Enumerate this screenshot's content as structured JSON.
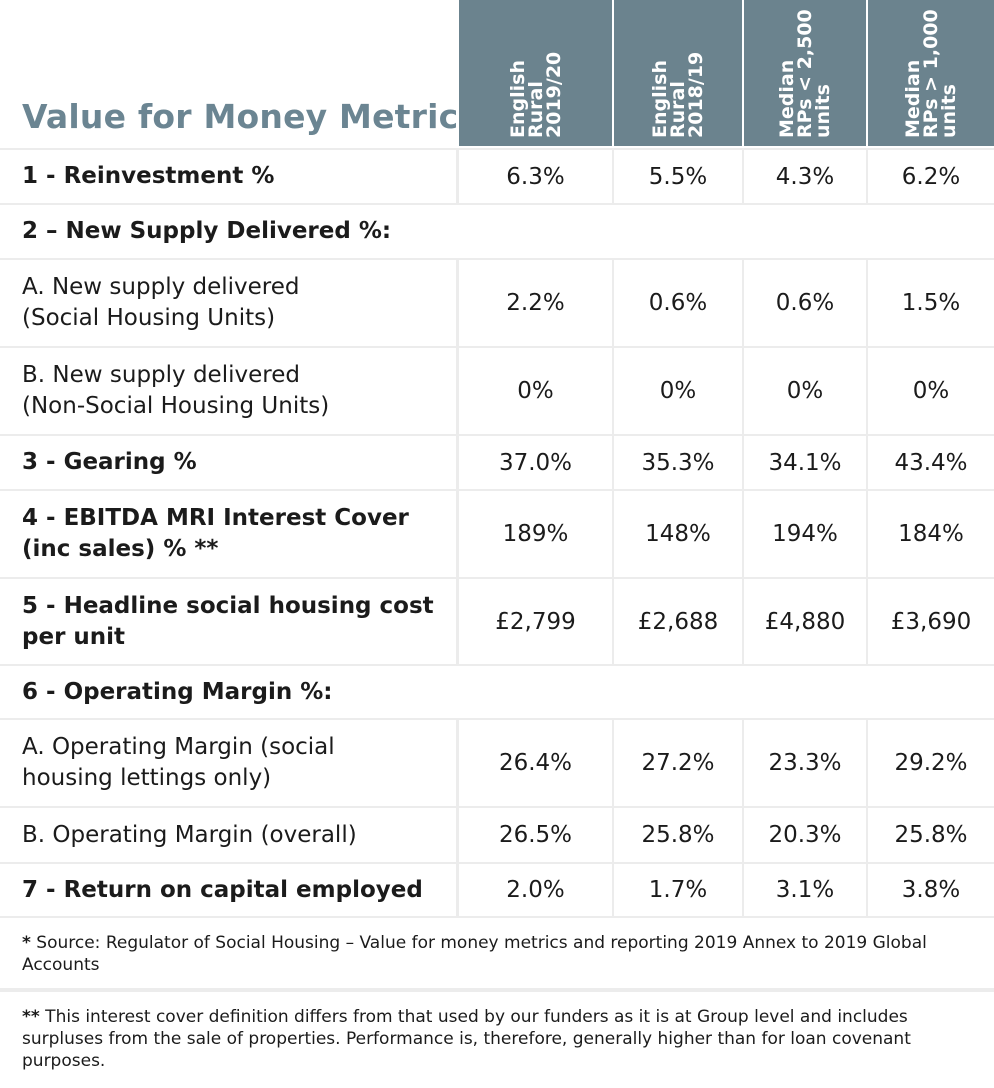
{
  "chart_data": {
    "type": "table",
    "title": "Value for Money Metric",
    "columns": [
      "English Rural 2019/20",
      "English Rural 2018/19",
      "Median RPs < 2,500 units",
      "Median RPs > 1,000 units"
    ],
    "column_lines": [
      [
        "English",
        "Rural",
        "2019/20"
      ],
      [
        "English",
        "Rural",
        "2018/19"
      ],
      [
        "Median",
        "RPs < 2,500",
        "units"
      ],
      [
        "Median",
        "RPs > 1,000",
        "units"
      ]
    ],
    "rows": [
      {
        "label": "1 - Reinvestment %",
        "bold": true,
        "values": [
          "6.3%",
          "5.5%",
          "4.3%",
          "6.2%"
        ]
      },
      {
        "label": "2 – New Supply Delivered %:",
        "bold": true,
        "values": []
      },
      {
        "label": "A. New supply delivered\n(Social Housing Units)",
        "bold": false,
        "values": [
          "2.2%",
          "0.6%",
          "0.6%",
          "1.5%"
        ]
      },
      {
        "label": "B. New supply delivered\n(Non-Social Housing Units)",
        "bold": false,
        "values": [
          "0%",
          "0%",
          "0%",
          "0%"
        ]
      },
      {
        "label": "3 - Gearing %",
        "bold": true,
        "values": [
          "37.0%",
          "35.3%",
          "34.1%",
          "43.4%"
        ]
      },
      {
        "label": "4 - EBITDA MRI Interest Cover\n(inc sales) % **",
        "bold": true,
        "values": [
          "189%",
          "148%",
          "194%",
          "184%"
        ]
      },
      {
        "label": "5 - Headline social housing cost\nper unit",
        "bold": true,
        "values": [
          "£2,799",
          "£2,688",
          "£4,880",
          "£3,690"
        ]
      },
      {
        "label": "6 - Operating Margin %:",
        "bold": true,
        "values": []
      },
      {
        "label": "A. Operating Margin (social\nhousing lettings only)",
        "bold": false,
        "values": [
          "26.4%",
          "27.2%",
          "23.3%",
          "29.2%"
        ]
      },
      {
        "label": "B. Operating Margin (overall)",
        "bold": false,
        "values": [
          "26.5%",
          "25.8%",
          "20.3%",
          "25.8%"
        ]
      },
      {
        "label": "7 - Return on capital employed",
        "bold": true,
        "values": [
          "2.0%",
          "1.7%",
          "3.1%",
          "3.8%"
        ]
      }
    ]
  },
  "notes": {
    "note1_marker": "*",
    "note1_text": " Source: Regulator of Social Housing – Value for money metrics and reporting 2019 Annex to 2019 Global Accounts",
    "note2_marker": "**",
    "note2_text": " This interest cover definition differs from that used by our funders as it is at Group level and includes surpluses from the sale of properties. Performance is, therefore, generally higher than for loan covenant purposes."
  },
  "colors": {
    "header_bg": "#6b838e",
    "title_color": "#6b8592",
    "grid": "#ececec"
  }
}
